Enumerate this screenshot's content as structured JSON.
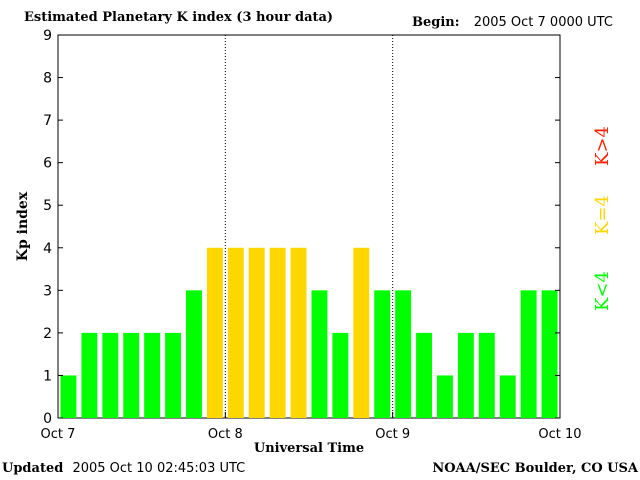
{
  "header": {
    "title": "Estimated Planetary K index (3 hour data)",
    "begin_label": "Begin:",
    "begin_value": "2005 Oct 7 0000 UTC"
  },
  "footer": {
    "updated_label": "Updated",
    "updated_value": "2005 Oct 10 02:45:03 UTC",
    "credit": "NOAA/SEC Boulder, CO USA"
  },
  "legend": {
    "high": "K>4",
    "mid": "K=4",
    "low": "K<4"
  },
  "colors": {
    "low": "#00ff00",
    "mid": "#ffd700",
    "high": "#ff2000",
    "background": "#ffffff",
    "axis": "#000000"
  },
  "chart_data": {
    "type": "bar",
    "ylabel": "Kp index",
    "xlabel": "Universal Time",
    "ylim": [
      0,
      9
    ],
    "yticks": [
      "0",
      "1",
      "2",
      "3",
      "4",
      "5",
      "6",
      "7",
      "8",
      "9"
    ],
    "xticks": [
      "Oct 7",
      "Oct 8",
      "Oct 9",
      "Oct 10"
    ],
    "day_separators": [
      "Oct 8",
      "Oct 9"
    ],
    "bars_per_day": 8,
    "values": [
      1,
      2,
      2,
      2,
      2,
      2,
      3,
      4,
      4,
      4,
      4,
      4,
      3,
      2,
      4,
      3,
      3,
      2,
      1,
      2,
      2,
      1,
      3,
      3
    ]
  }
}
